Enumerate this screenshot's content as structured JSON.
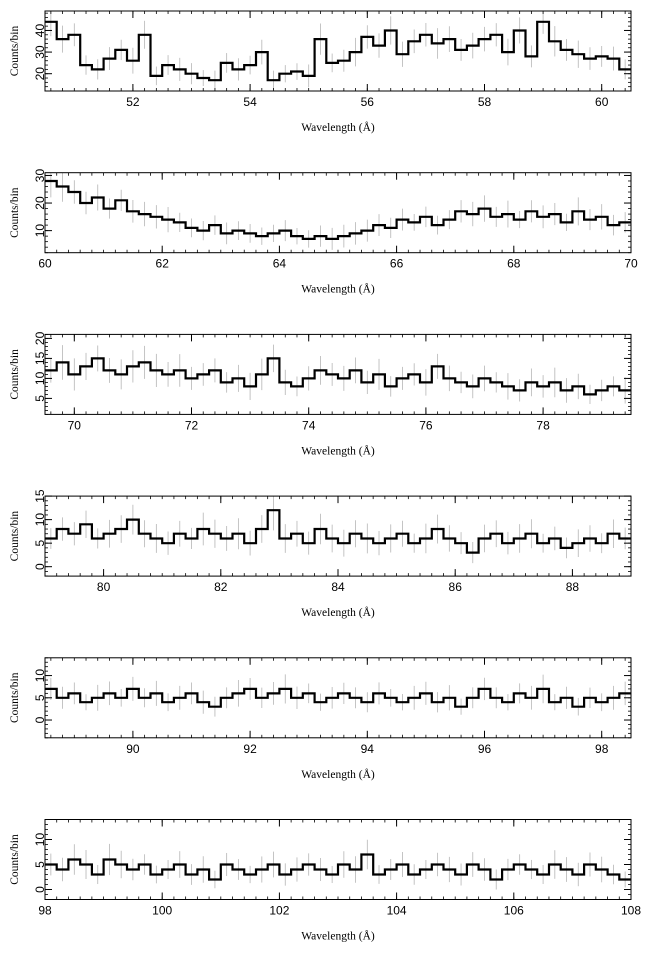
{
  "figure": {
    "xlabel": "Wavelength (Å)",
    "ylabel": "Counts/bin"
  },
  "chart_data": [
    {
      "type": "line",
      "style": "histogram step with error bars",
      "xlabel": "Wavelength (Å)",
      "ylabel": "Counts/bin",
      "xlim": [
        50.5,
        60.5
      ],
      "ylim": [
        12,
        49
      ],
      "xticks": [
        52,
        54,
        56,
        58,
        60
      ],
      "yticks": [
        20,
        30,
        40
      ],
      "series": [
        {
          "x": [
            50.6,
            50.8,
            51.0,
            51.2,
            51.4,
            51.6,
            51.8,
            52.0,
            52.2,
            52.4,
            52.6,
            52.8,
            53.0,
            53.2,
            53.4,
            53.6,
            53.8,
            54.0,
            54.2,
            54.4,
            54.6,
            54.8,
            55.0,
            55.2,
            55.4,
            55.6,
            55.8,
            56.0,
            56.2,
            56.4,
            56.6,
            56.8,
            57.0,
            57.2,
            57.4,
            57.6,
            57.8,
            58.0,
            58.2,
            58.4,
            58.6,
            58.8,
            59.0,
            59.2,
            59.4,
            59.6,
            59.8,
            60.0,
            60.2,
            60.4
          ],
          "y": [
            44,
            36,
            38,
            24,
            22,
            27,
            31,
            26,
            38,
            19,
            24,
            22,
            20,
            18,
            17,
            25,
            22,
            24,
            30,
            17,
            20,
            21,
            19,
            36,
            25,
            26,
            30,
            37,
            33,
            40,
            29,
            35,
            38,
            34,
            36,
            31,
            33,
            36,
            38,
            30,
            40,
            28,
            44,
            35,
            31,
            29,
            27,
            28,
            27,
            22
          ]
        }
      ]
    },
    {
      "type": "line",
      "style": "histogram step with error bars",
      "xlabel": "Wavelength (Å)",
      "ylabel": "Counts/bin",
      "xlim": [
        60,
        70
      ],
      "ylim": [
        2,
        31
      ],
      "xticks": [
        60,
        62,
        64,
        66,
        68,
        70
      ],
      "yticks": [
        10,
        20,
        30
      ],
      "series": [
        {
          "x": [
            60.1,
            60.3,
            60.5,
            60.7,
            60.9,
            61.1,
            61.3,
            61.5,
            61.7,
            61.9,
            62.1,
            62.3,
            62.5,
            62.7,
            62.9,
            63.1,
            63.3,
            63.5,
            63.7,
            63.9,
            64.1,
            64.3,
            64.5,
            64.7,
            64.9,
            65.1,
            65.3,
            65.5,
            65.7,
            65.9,
            66.1,
            66.3,
            66.5,
            66.7,
            66.9,
            67.1,
            67.3,
            67.5,
            67.7,
            67.9,
            68.1,
            68.3,
            68.5,
            68.7,
            68.9,
            69.1,
            69.3,
            69.5,
            69.7,
            69.9
          ],
          "y": [
            28,
            26,
            24,
            20,
            22,
            18,
            21,
            17,
            16,
            15,
            14,
            13,
            11,
            10,
            12,
            9,
            10,
            9,
            8,
            9,
            10,
            8,
            7,
            8,
            7,
            8,
            9,
            10,
            12,
            11,
            14,
            13,
            15,
            12,
            14,
            17,
            16,
            18,
            15,
            16,
            14,
            17,
            15,
            16,
            13,
            17,
            14,
            15,
            12,
            13
          ]
        }
      ]
    },
    {
      "type": "line",
      "style": "histogram step with error bars",
      "xlabel": "Wavelength (Å)",
      "ylabel": "Counts/bin",
      "xlim": [
        69.5,
        79.5
      ],
      "ylim": [
        1,
        21
      ],
      "xticks": [
        70,
        72,
        74,
        76,
        78
      ],
      "yticks": [
        5,
        10,
        15,
        20
      ],
      "series": [
        {
          "x": [
            69.6,
            69.8,
            70.0,
            70.2,
            70.4,
            70.6,
            70.8,
            71.0,
            71.2,
            71.4,
            71.6,
            71.8,
            72.0,
            72.2,
            72.4,
            72.6,
            72.8,
            73.0,
            73.2,
            73.4,
            73.6,
            73.8,
            74.0,
            74.2,
            74.4,
            74.6,
            74.8,
            75.0,
            75.2,
            75.4,
            75.6,
            75.8,
            76.0,
            76.2,
            76.4,
            76.6,
            76.8,
            77.0,
            77.2,
            77.4,
            77.6,
            77.8,
            78.0,
            78.2,
            78.4,
            78.6,
            78.8,
            79.0,
            79.2,
            79.4
          ],
          "y": [
            12,
            14,
            11,
            13,
            15,
            12,
            11,
            13,
            14,
            12,
            11,
            12,
            10,
            11,
            12,
            9,
            10,
            8,
            11,
            15,
            9,
            8,
            10,
            12,
            11,
            10,
            12,
            9,
            11,
            8,
            10,
            11,
            9,
            13,
            10,
            9,
            8,
            10,
            9,
            8,
            7,
            9,
            8,
            9,
            7,
            8,
            6,
            7,
            8,
            7
          ]
        }
      ]
    },
    {
      "type": "line",
      "style": "histogram step with error bars",
      "xlabel": "Wavelength (Å)",
      "ylabel": "Counts/bin",
      "xlim": [
        79,
        89
      ],
      "ylim": [
        -2,
        15
      ],
      "xticks": [
        80,
        82,
        84,
        86,
        88
      ],
      "yticks": [
        0,
        5,
        10,
        15
      ],
      "series": [
        {
          "x": [
            79.1,
            79.3,
            79.5,
            79.7,
            79.9,
            80.1,
            80.3,
            80.5,
            80.7,
            80.9,
            81.1,
            81.3,
            81.5,
            81.7,
            81.9,
            82.1,
            82.3,
            82.5,
            82.7,
            82.9,
            83.1,
            83.3,
            83.5,
            83.7,
            83.9,
            84.1,
            84.3,
            84.5,
            84.7,
            84.9,
            85.1,
            85.3,
            85.5,
            85.7,
            85.9,
            86.1,
            86.3,
            86.5,
            86.7,
            86.9,
            87.1,
            87.3,
            87.5,
            87.7,
            87.9,
            88.1,
            88.3,
            88.5,
            88.7,
            88.9
          ],
          "y": [
            6,
            8,
            7,
            9,
            6,
            7,
            8,
            10,
            7,
            6,
            5,
            7,
            6,
            8,
            7,
            6,
            7,
            5,
            8,
            12,
            6,
            7,
            5,
            8,
            6,
            5,
            7,
            6,
            5,
            6,
            7,
            5,
            6,
            8,
            6,
            5,
            3,
            6,
            7,
            5,
            6,
            7,
            5,
            6,
            4,
            5,
            6,
            5,
            7,
            6
          ]
        }
      ]
    },
    {
      "type": "line",
      "style": "histogram step with error bars",
      "xlabel": "Wavelength (Å)",
      "ylabel": "Counts/bin",
      "xlim": [
        88.5,
        98.5
      ],
      "ylim": [
        -4,
        14
      ],
      "xticks": [
        90,
        92,
        94,
        96,
        98
      ],
      "yticks": [
        0,
        5,
        10
      ],
      "series": [
        {
          "x": [
            88.6,
            88.8,
            89.0,
            89.2,
            89.4,
            89.6,
            89.8,
            90.0,
            90.2,
            90.4,
            90.6,
            90.8,
            91.0,
            91.2,
            91.4,
            91.6,
            91.8,
            92.0,
            92.2,
            92.4,
            92.6,
            92.8,
            93.0,
            93.2,
            93.4,
            93.6,
            93.8,
            94.0,
            94.2,
            94.4,
            94.6,
            94.8,
            95.0,
            95.2,
            95.4,
            95.6,
            95.8,
            96.0,
            96.2,
            96.4,
            96.6,
            96.8,
            97.0,
            97.2,
            97.4,
            97.6,
            97.8,
            98.0,
            98.2,
            98.4
          ],
          "y": [
            7,
            5,
            6,
            4,
            5,
            6,
            5,
            7,
            5,
            6,
            4,
            5,
            6,
            4,
            3,
            5,
            6,
            7,
            5,
            6,
            7,
            5,
            6,
            4,
            5,
            6,
            5,
            4,
            6,
            5,
            4,
            5,
            6,
            4,
            5,
            3,
            5,
            7,
            5,
            4,
            6,
            5,
            7,
            4,
            5,
            3,
            5,
            4,
            5,
            6
          ]
        }
      ]
    },
    {
      "type": "line",
      "style": "histogram step with error bars",
      "xlabel": "Wavelength (Å)",
      "ylabel": "Counts/bin",
      "xlim": [
        98,
        108
      ],
      "ylim": [
        -2,
        14
      ],
      "xticks": [
        98,
        100,
        102,
        104,
        106,
        108
      ],
      "yticks": [
        0,
        5,
        10
      ],
      "series": [
        {
          "x": [
            98.1,
            98.3,
            98.5,
            98.7,
            98.9,
            99.1,
            99.3,
            99.5,
            99.7,
            99.9,
            100.1,
            100.3,
            100.5,
            100.7,
            100.9,
            101.1,
            101.3,
            101.5,
            101.7,
            101.9,
            102.1,
            102.3,
            102.5,
            102.7,
            102.9,
            103.1,
            103.3,
            103.5,
            103.7,
            103.9,
            104.1,
            104.3,
            104.5,
            104.7,
            104.9,
            105.1,
            105.3,
            105.5,
            105.7,
            105.9,
            106.1,
            106.3,
            106.5,
            106.7,
            106.9,
            107.1,
            107.3,
            107.5,
            107.7,
            107.9
          ],
          "y": [
            5,
            4,
            6,
            5,
            3,
            6,
            5,
            4,
            5,
            3,
            4,
            5,
            3,
            4,
            2,
            5,
            4,
            3,
            4,
            5,
            3,
            4,
            5,
            4,
            3,
            5,
            4,
            7,
            3,
            4,
            5,
            3,
            4,
            5,
            4,
            3,
            5,
            4,
            2,
            4,
            5,
            4,
            3,
            5,
            4,
            3,
            5,
            4,
            3,
            2
          ]
        }
      ]
    }
  ]
}
